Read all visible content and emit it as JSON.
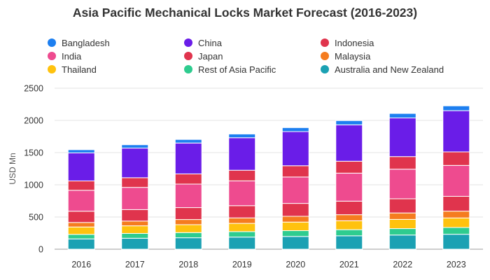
{
  "chart_data": {
    "type": "bar",
    "stacked": true,
    "title": "Asia Pacific Mechanical Locks Market Forecast (2016-2023)",
    "xlabel": "",
    "ylabel": "USD Mn",
    "ylim": [
      0,
      2500
    ],
    "yticks": [
      "0",
      "500",
      "1000",
      "1500",
      "2000",
      "2500"
    ],
    "grid": true,
    "legend_position": "top",
    "categories": [
      "2016",
      "2017",
      "2018",
      "2019",
      "2020",
      "2021",
      "2022",
      "2023"
    ],
    "series": [
      {
        "name": "Australia and New Zealand",
        "color": "#1ba1b3",
        "values": [
          160,
          170,
          178,
          188,
          198,
          208,
          220,
          232
        ]
      },
      {
        "name": "Rest of Asia Pacific",
        "color": "#2ecc8f",
        "values": [
          70,
          75,
          80,
          85,
          90,
          95,
          100,
          105
        ]
      },
      {
        "name": "Thailand",
        "color": "#ffc20e",
        "values": [
          115,
          118,
          123,
          128,
          133,
          138,
          143,
          148
        ]
      },
      {
        "name": "Malaysia",
        "color": "#f57c1f",
        "values": [
          70,
          74,
          80,
          85,
          90,
          95,
          100,
          106
        ]
      },
      {
        "name": "Japan",
        "color": "#e0344d",
        "values": [
          175,
          178,
          185,
          190,
          200,
          210,
          220,
          230
        ]
      },
      {
        "name": "India",
        "color": "#ee4b8f",
        "values": [
          325,
          345,
          365,
          385,
          410,
          435,
          460,
          480
        ]
      },
      {
        "name": "Indonesia",
        "color": "#e0344d",
        "values": [
          145,
          150,
          158,
          165,
          175,
          185,
          195,
          210
        ]
      },
      {
        "name": "China",
        "color": "#6a1de8",
        "values": [
          435,
          460,
          480,
          505,
          530,
          565,
          600,
          640
        ]
      },
      {
        "name": "Bangladesh",
        "color": "#1d7ff0",
        "values": [
          50,
          52,
          55,
          58,
          62,
          66,
          70,
          75
        ]
      }
    ]
  },
  "legend_order": [
    "Bangladesh",
    "China",
    "Indonesia",
    "India",
    "Japan",
    "Malaysia",
    "Thailand",
    "Rest of Asia Pacific",
    "Australia and New Zealand"
  ]
}
